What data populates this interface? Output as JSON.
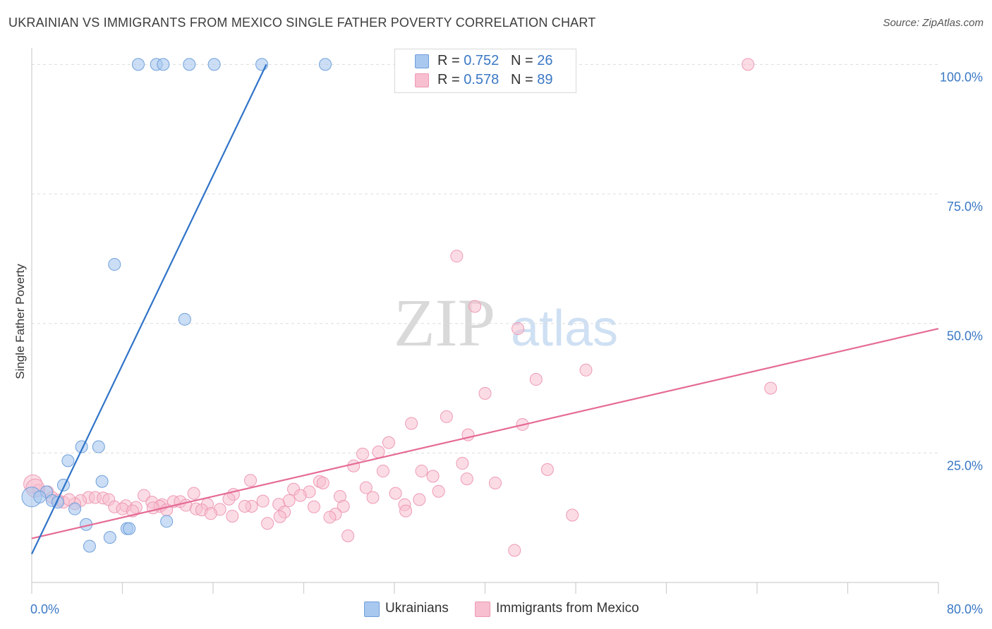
{
  "header": {
    "title": "UKRAINIAN VS IMMIGRANTS FROM MEXICO SINGLE FATHER POVERTY CORRELATION CHART",
    "source": "Source: ZipAtlas.com"
  },
  "watermark": {
    "zip": "ZIP",
    "atlas": "atlas"
  },
  "legend": {
    "rows": [
      {
        "r_label": "R = ",
        "r_value": "0.752",
        "n_label": "N = ",
        "n_value": "26",
        "color": "#a9c8ef"
      },
      {
        "r_label": "R = ",
        "r_value": "0.578",
        "n_label": "N = ",
        "n_value": "89",
        "color": "#f7bfd0"
      }
    ]
  },
  "bottom_legend": [
    {
      "label": "Ukrainians",
      "color": "#a9c8ef"
    },
    {
      "label": "Immigrants from Mexico",
      "color": "#f7bfd0"
    }
  ],
  "colors": {
    "blue_fill": "#a9c8ef",
    "blue_stroke": "#6fa0dc",
    "blue_line": "#2f73c8",
    "pink_fill": "#f7bfd0",
    "pink_stroke": "#ee9ab4",
    "pink_line": "#e56b95",
    "tick_text": "#3b78c4",
    "grid": "#dddddd"
  },
  "chart_data": {
    "type": "scatter",
    "title": "UKRAINIAN VS IMMIGRANTS FROM MEXICO SINGLE FATHER POVERTY CORRELATION CHART",
    "xlabel": "",
    "ylabel": "Single Father Poverty",
    "xlim": [
      0,
      80
    ],
    "ylim": [
      0,
      104
    ],
    "y_ticks": [
      {
        "value": 25,
        "label": "25.0%"
      },
      {
        "value": 50,
        "label": "50.0%"
      },
      {
        "value": 75,
        "label": "75.0%"
      },
      {
        "value": 100,
        "label": "100.0%"
      }
    ],
    "x_tick_labels": [
      {
        "value": 0,
        "label": "0.0%"
      },
      {
        "value": 80,
        "label": "80.0%"
      }
    ],
    "x_minor_ticks": [
      0,
      8,
      16,
      24,
      32,
      40,
      48,
      56,
      64,
      72,
      80
    ],
    "grid": true,
    "legend_position": "top-center",
    "series": [
      {
        "name": "Ukrainians",
        "trend": {
          "x": [
            0.0,
            20.7
          ],
          "y": [
            5.5,
            100.0
          ]
        },
        "points": [
          {
            "x": 9.4,
            "y": 100.0
          },
          {
            "x": 11.0,
            "y": 100.0
          },
          {
            "x": 11.6,
            "y": 100.0
          },
          {
            "x": 13.9,
            "y": 100.0
          },
          {
            "x": 16.1,
            "y": 100.0
          },
          {
            "x": 20.3,
            "y": 100.0
          },
          {
            "x": 25.9,
            "y": 100.0
          },
          {
            "x": 7.3,
            "y": 61.4
          },
          {
            "x": 13.5,
            "y": 50.8
          },
          {
            "x": 4.4,
            "y": 26.2
          },
          {
            "x": 5.9,
            "y": 26.2
          },
          {
            "x": 3.2,
            "y": 23.5
          },
          {
            "x": 6.2,
            "y": 19.5
          },
          {
            "x": 2.8,
            "y": 18.8
          },
          {
            "x": 1.3,
            "y": 17.5
          },
          {
            "x": 0.0,
            "y": 16.5
          },
          {
            "x": 0.7,
            "y": 16.5
          },
          {
            "x": 1.8,
            "y": 15.8
          },
          {
            "x": 2.3,
            "y": 15.5
          },
          {
            "x": 3.8,
            "y": 14.2
          },
          {
            "x": 4.8,
            "y": 11.2
          },
          {
            "x": 8.4,
            "y": 10.4
          },
          {
            "x": 8.6,
            "y": 10.4
          },
          {
            "x": 11.9,
            "y": 11.8
          },
          {
            "x": 6.9,
            "y": 8.7
          },
          {
            "x": 5.1,
            "y": 7.0
          }
        ]
      },
      {
        "name": "Immigrants from Mexico",
        "trend": {
          "x": [
            0.0,
            80.0
          ],
          "y": [
            8.5,
            49.0
          ]
        },
        "points": [
          {
            "x": 63.2,
            "y": 100.0
          },
          {
            "x": 37.5,
            "y": 63.0
          },
          {
            "x": 39.1,
            "y": 53.3
          },
          {
            "x": 42.9,
            "y": 49.0
          },
          {
            "x": 48.9,
            "y": 41.0
          },
          {
            "x": 44.5,
            "y": 39.2
          },
          {
            "x": 65.2,
            "y": 37.5
          },
          {
            "x": 40.0,
            "y": 36.5
          },
          {
            "x": 36.6,
            "y": 32.0
          },
          {
            "x": 33.5,
            "y": 30.7
          },
          {
            "x": 43.3,
            "y": 30.5
          },
          {
            "x": 38.5,
            "y": 28.5
          },
          {
            "x": 31.5,
            "y": 27.0
          },
          {
            "x": 30.6,
            "y": 25.2
          },
          {
            "x": 29.2,
            "y": 24.8
          },
          {
            "x": 38.0,
            "y": 23.0
          },
          {
            "x": 28.4,
            "y": 22.5
          },
          {
            "x": 31.0,
            "y": 21.5
          },
          {
            "x": 34.4,
            "y": 21.5
          },
          {
            "x": 45.5,
            "y": 21.8
          },
          {
            "x": 35.4,
            "y": 20.5
          },
          {
            "x": 38.4,
            "y": 20.0
          },
          {
            "x": 40.9,
            "y": 19.2
          },
          {
            "x": 25.4,
            "y": 19.5
          },
          {
            "x": 25.7,
            "y": 19.2
          },
          {
            "x": 19.3,
            "y": 19.7
          },
          {
            "x": 29.5,
            "y": 18.3
          },
          {
            "x": 23.1,
            "y": 18.0
          },
          {
            "x": 24.5,
            "y": 17.5
          },
          {
            "x": 35.9,
            "y": 17.6
          },
          {
            "x": 32.1,
            "y": 17.2
          },
          {
            "x": 14.3,
            "y": 17.2
          },
          {
            "x": 17.8,
            "y": 17.0
          },
          {
            "x": 23.7,
            "y": 16.8
          },
          {
            "x": 9.9,
            "y": 16.8
          },
          {
            "x": 27.2,
            "y": 16.6
          },
          {
            "x": 5.0,
            "y": 16.4
          },
          {
            "x": 5.6,
            "y": 16.4
          },
          {
            "x": 6.3,
            "y": 16.3
          },
          {
            "x": 30.1,
            "y": 16.4
          },
          {
            "x": 17.4,
            "y": 16.1
          },
          {
            "x": 34.2,
            "y": 16.0
          },
          {
            "x": 22.7,
            "y": 15.8
          },
          {
            "x": 6.8,
            "y": 16.0
          },
          {
            "x": 4.3,
            "y": 15.8
          },
          {
            "x": 20.4,
            "y": 15.7
          },
          {
            "x": 12.5,
            "y": 15.6
          },
          {
            "x": 13.1,
            "y": 15.6
          },
          {
            "x": 2.8,
            "y": 15.5
          },
          {
            "x": 10.6,
            "y": 15.5
          },
          {
            "x": 3.8,
            "y": 15.2
          },
          {
            "x": 15.5,
            "y": 15.1
          },
          {
            "x": 21.8,
            "y": 15.1
          },
          {
            "x": 11.5,
            "y": 15.0
          },
          {
            "x": 32.9,
            "y": 15.0
          },
          {
            "x": 13.6,
            "y": 14.9
          },
          {
            "x": 8.3,
            "y": 14.8
          },
          {
            "x": 11.3,
            "y": 14.7
          },
          {
            "x": 19.4,
            "y": 14.7
          },
          {
            "x": 27.5,
            "y": 14.7
          },
          {
            "x": 10.7,
            "y": 14.4
          },
          {
            "x": 18.8,
            "y": 14.7
          },
          {
            "x": 24.9,
            "y": 14.6
          },
          {
            "x": 7.3,
            "y": 14.6
          },
          {
            "x": 9.2,
            "y": 14.5
          },
          {
            "x": 14.5,
            "y": 14.2
          },
          {
            "x": 8.0,
            "y": 14.2
          },
          {
            "x": 15.0,
            "y": 14.0
          },
          {
            "x": 11.9,
            "y": 14.0
          },
          {
            "x": 16.6,
            "y": 14.1
          },
          {
            "x": 15.8,
            "y": 13.3
          },
          {
            "x": 8.9,
            "y": 13.8
          },
          {
            "x": 33.0,
            "y": 13.8
          },
          {
            "x": 22.3,
            "y": 13.6
          },
          {
            "x": 26.8,
            "y": 13.2
          },
          {
            "x": 47.7,
            "y": 13.0
          },
          {
            "x": 17.7,
            "y": 12.8
          },
          {
            "x": 21.9,
            "y": 12.7
          },
          {
            "x": 26.3,
            "y": 12.6
          },
          {
            "x": 20.8,
            "y": 11.4
          },
          {
            "x": 27.9,
            "y": 9.0
          },
          {
            "x": 42.6,
            "y": 6.2
          },
          {
            "x": 0.1,
            "y": 19.0
          },
          {
            "x": 0.6,
            "y": 17.8
          },
          {
            "x": 1.4,
            "y": 17.5
          },
          {
            "x": 1.8,
            "y": 16.4
          },
          {
            "x": 2.3,
            "y": 15.9
          },
          {
            "x": 0.3,
            "y": 18.2
          },
          {
            "x": 3.3,
            "y": 16.0
          }
        ]
      }
    ]
  }
}
